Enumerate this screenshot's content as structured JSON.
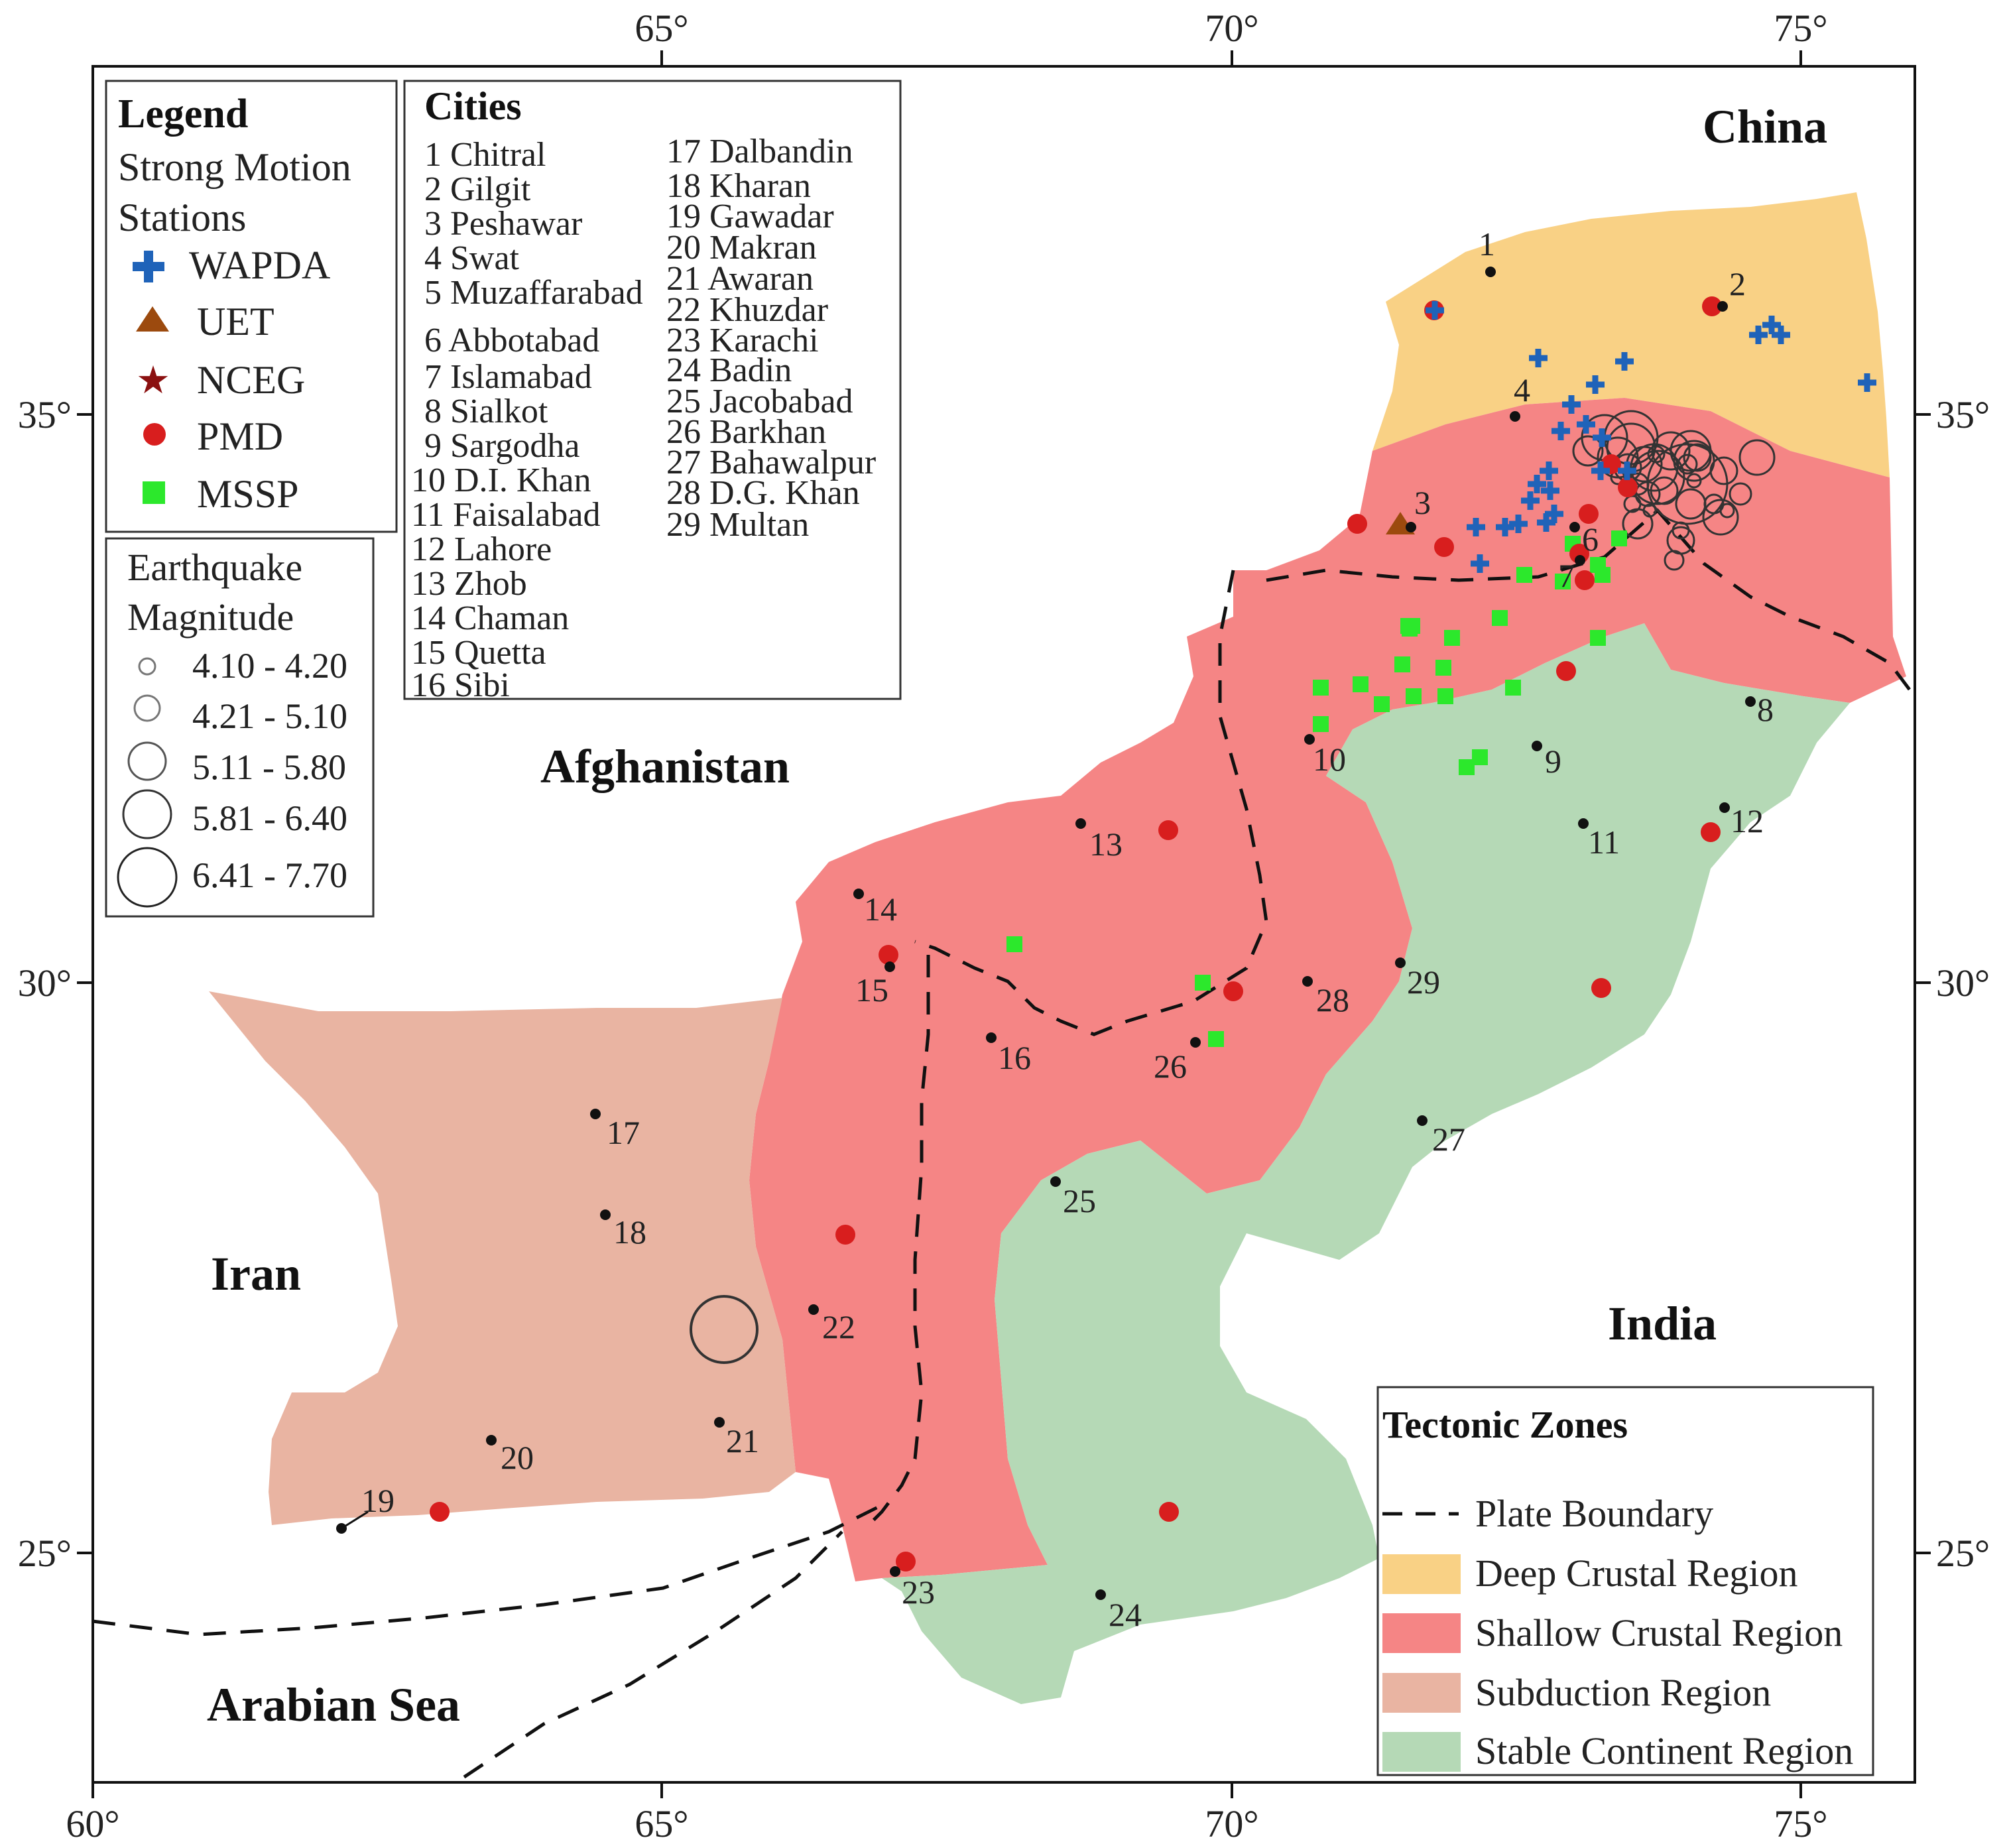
{
  "axes": {
    "x_ticks": [
      "60°",
      "65°",
      "70°",
      "75°"
    ],
    "x_ticks_top": [
      "65°",
      "70°",
      "75°"
    ],
    "y_ticks": [
      "35°",
      "30°",
      "25°"
    ]
  },
  "country_labels": {
    "china": "China",
    "afghanistan": "Afghanistan",
    "iran": "Iran",
    "india": "India",
    "arabian_sea": "Arabian Sea"
  },
  "legend": {
    "title": "Legend",
    "stations_title_1": "Strong Motion",
    "stations_title_2": "Stations",
    "items": [
      "WAPDA",
      "UET",
      "NCEG",
      "PMD",
      "MSSP"
    ],
    "magnitude_title_1": "Earthquake",
    "magnitude_title_2": "Magnitude",
    "magnitude_items": [
      "4.10 - 4.20",
      "4.21 - 5.10",
      "5.11 - 5.80",
      "5.81 - 6.40",
      "6.41 - 7.70"
    ]
  },
  "cities": {
    "title": "Cities",
    "items": [
      "1 Chitral",
      "2 Gilgit",
      "3 Peshawar",
      "4 Swat",
      "5 Muzaffarabad",
      "6 Abbotabad",
      "7 Islamabad",
      "8 Sialkot",
      "9 Sargodha",
      "10 D.I. Khan",
      "11 Faisalabad",
      "12 Lahore",
      "13 Zhob",
      "14 Chaman",
      "15 Quetta",
      "16 Sibi",
      "17 Dalbandin",
      "18 Kharan",
      "19 Gawadar",
      "20 Makran",
      "21 Awaran",
      "22 Khuzdar",
      "23 Karachi",
      "24 Badin",
      "25 Jacobabad",
      "26 Barkhan",
      "27 Bahawalpur",
      "28 D.G. Khan",
      "29 Multan"
    ],
    "map_numbers": [
      "1",
      "2",
      "3",
      "4",
      "6",
      "7",
      "8",
      "9",
      "10",
      "11",
      "12",
      "13",
      "14",
      "15",
      "16",
      "17",
      "18",
      "19",
      "20",
      "21",
      "22",
      "23",
      "24",
      "25",
      "26",
      "27",
      "28",
      "29"
    ]
  },
  "tectonic": {
    "title": "Tectonic Zones",
    "items": [
      "Plate Boundary",
      "Deep Crustal Region",
      "Shallow Crustal Region",
      "Subduction Region",
      "Stable Continent  Region"
    ]
  },
  "colors": {
    "deep": "#f9d185",
    "shallow": "#f58585",
    "subduction": "#e9b4a2",
    "stable": "#b5d9b6",
    "wapda": "#1f63b9",
    "uet": "#9c4a0e",
    "nceg": "#8b1010",
    "pmd": "#d81e1e",
    "mssp": "#2ce82c"
  }
}
